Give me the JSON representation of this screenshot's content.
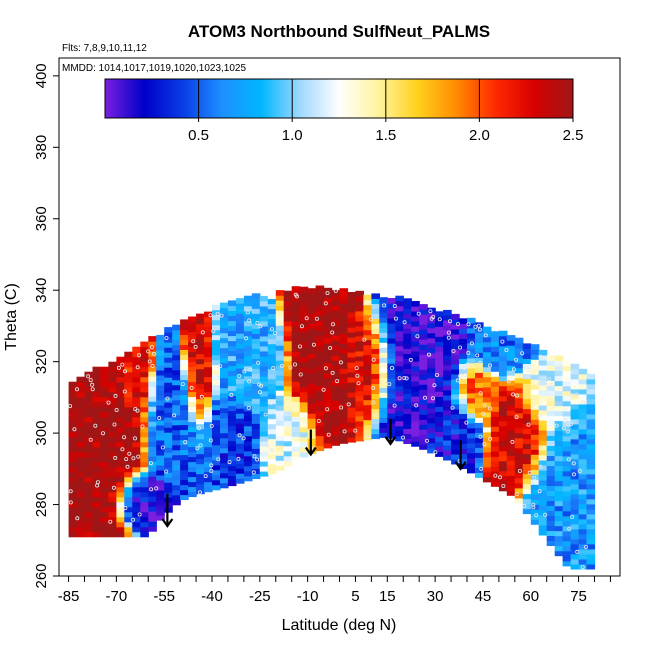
{
  "chart_data": {
    "type": "heatmap",
    "title": "ATOM3 Northbound SulfNeut_PALMS",
    "annotations": {
      "flights": "Flts: 7,8,9,10,11,12",
      "dates": "MMDD: 1014,1017,1019,1020,1023,1025"
    },
    "xlabel": "Latitude (deg N)",
    "ylabel": "Theta (C)",
    "xlim": [
      -88,
      88
    ],
    "ylim": [
      260,
      405
    ],
    "x_ticks": [
      -85,
      -70,
      -55,
      -40,
      -25,
      -10,
      5,
      15,
      30,
      45,
      60,
      75
    ],
    "x_minor_step": 5,
    "y_ticks": [
      260,
      280,
      300,
      320,
      340,
      360,
      380,
      400
    ],
    "colorbar": {
      "range": [
        0,
        2.5
      ],
      "ticks": [
        0.5,
        1.0,
        1.5,
        2.0,
        2.5
      ],
      "tick_labels": [
        "0.5",
        "1.0",
        "1.5",
        "2.0",
        "2.5"
      ],
      "colors": [
        "#7a1fe0",
        "#0000c8",
        "#0a3ce6",
        "#1e90ff",
        "#00b6ff",
        "#9fd8ff",
        "#ffffff",
        "#fff3a0",
        "#ffd21e",
        "#ff8c00",
        "#ff2a00",
        "#d80000",
        "#a01616"
      ]
    },
    "coverage_envelope": {
      "bottom": [
        [
          -85,
          271
        ],
        [
          -78,
          271
        ],
        [
          -60,
          271
        ],
        [
          -56,
          276
        ],
        [
          -50,
          281
        ],
        [
          -44,
          283
        ],
        [
          -35,
          285
        ],
        [
          -20,
          289
        ],
        [
          -10,
          294
        ],
        [
          0,
          297
        ],
        [
          15,
          299
        ],
        [
          25,
          296
        ],
        [
          35,
          292
        ],
        [
          45,
          287
        ],
        [
          55,
          282
        ],
        [
          60,
          276
        ],
        [
          65,
          270
        ],
        [
          72,
          262
        ],
        [
          78,
          262
        ]
      ],
      "top": [
        [
          -85,
          312
        ],
        [
          -80,
          316
        ],
        [
          -70,
          320
        ],
        [
          -62,
          324
        ],
        [
          -55,
          328
        ],
        [
          -45,
          333
        ],
        [
          -30,
          337
        ],
        [
          -15,
          340
        ],
        [
          0,
          340
        ],
        [
          10,
          338
        ],
        [
          20,
          337
        ],
        [
          35,
          333
        ],
        [
          45,
          330
        ],
        [
          55,
          326
        ],
        [
          65,
          322
        ],
        [
          72,
          319
        ],
        [
          78,
          316
        ]
      ]
    },
    "arrows": [
      {
        "lat": -54,
        "theta_from": 283,
        "theta_to": 274
      },
      {
        "lat": -9,
        "theta_from": 301,
        "theta_to": 294
      },
      {
        "lat": 16,
        "theta_from": 304,
        "theta_to": 297
      },
      {
        "lat": 38,
        "theta_from": 298,
        "theta_to": 290
      }
    ],
    "field_features": [
      {
        "lat": -75,
        "theta": 300,
        "value": 2.5,
        "sx": 8,
        "sy": 12
      },
      {
        "lat": -65,
        "theta": 315,
        "value": 2.2,
        "sx": 3,
        "sy": 8
      },
      {
        "lat": -60,
        "theta": 282,
        "value": 0.2,
        "sx": 5,
        "sy": 4
      },
      {
        "lat": -50,
        "theta": 300,
        "value": 0.5,
        "sx": 6,
        "sy": 10
      },
      {
        "lat": -44,
        "theta": 315,
        "value": 2.3,
        "sx": 2.5,
        "sy": 10
      },
      {
        "lat": -35,
        "theta": 300,
        "value": 0.4,
        "sx": 5,
        "sy": 6
      },
      {
        "lat": -28,
        "theta": 320,
        "value": 0.8,
        "sx": 6,
        "sy": 8
      },
      {
        "lat": -15,
        "theta": 300,
        "value": 1.2,
        "sx": 5,
        "sy": 6
      },
      {
        "lat": -5,
        "theta": 322,
        "value": 2.5,
        "sx": 6,
        "sy": 15
      },
      {
        "lat": 8,
        "theta": 318,
        "value": 2.3,
        "sx": 5,
        "sy": 8
      },
      {
        "lat": 25,
        "theta": 318,
        "value": 0.15,
        "sx": 9,
        "sy": 12
      },
      {
        "lat": 35,
        "theta": 302,
        "value": 0.3,
        "sx": 5,
        "sy": 6
      },
      {
        "lat": 42,
        "theta": 312,
        "value": 2.0,
        "sx": 4,
        "sy": 5
      },
      {
        "lat": 50,
        "theta": 325,
        "value": 0.6,
        "sx": 6,
        "sy": 5
      },
      {
        "lat": 57,
        "theta": 300,
        "value": 2.3,
        "sx": 5,
        "sy": 8
      },
      {
        "lat": 65,
        "theta": 310,
        "value": 1.2,
        "sx": 5,
        "sy": 6
      },
      {
        "lat": 70,
        "theta": 285,
        "value": 0.7,
        "sx": 6,
        "sy": 10
      }
    ]
  }
}
